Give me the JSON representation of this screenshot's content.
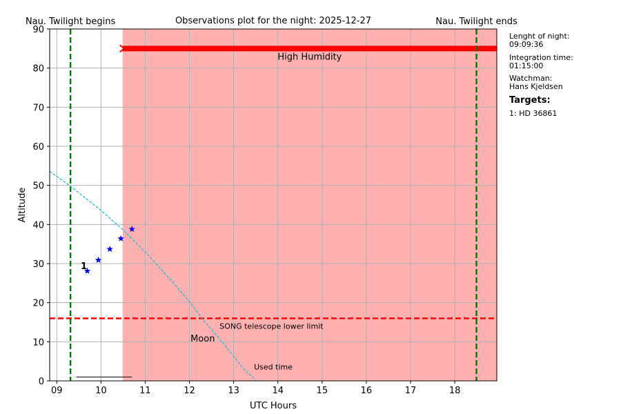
{
  "chart_data": {
    "type": "line",
    "title": "Observations plot for the night: 2025-12-27",
    "xlabel": "UTC Hours",
    "ylabel": "Altitude",
    "xlim": [
      8.84,
      18.95
    ],
    "ylim": [
      0,
      90
    ],
    "xticks": [
      {
        "value": 9,
        "label": "09"
      },
      10,
      11,
      12,
      13,
      14,
      15,
      16,
      17,
      18
    ],
    "yticks": [
      0,
      10,
      20,
      30,
      40,
      50,
      60,
      70,
      80,
      90
    ],
    "grid": true,
    "series": [
      {
        "name": "Moon",
        "color": "#17becf",
        "x": [
          8.84,
          9.31,
          10.0,
          10.5,
          11.0,
          11.5,
          12.0,
          12.3,
          12.8,
          13.2,
          13.5
        ],
        "values": [
          53.6,
          49.8,
          43.6,
          38.6,
          33.0,
          26.8,
          20.3,
          15.7,
          9.2,
          3.4,
          0.2
        ]
      }
    ],
    "observations": {
      "target": "1",
      "color": "#0000ff",
      "x": [
        9.69,
        9.94,
        10.2,
        10.45,
        10.7
      ],
      "values": [
        28.1,
        30.9,
        33.7,
        36.4,
        38.8
      ]
    },
    "used_time": {
      "label": "Used time",
      "x": [
        9.44,
        10.7
      ],
      "values": [
        1,
        1
      ]
    },
    "lower_limit": {
      "label": "SONG telescope lower limit",
      "value": 16,
      "color": "#ff0000"
    },
    "twilight_begin": {
      "label": "Nau. Twilight begins",
      "value": 9.31,
      "color": "#008000"
    },
    "twilight_end": {
      "label": "Nau. Twilight ends",
      "value": 18.49,
      "color": "#008000"
    },
    "high_humidity": {
      "label": "High Humidity",
      "start": 10.49,
      "level": 85,
      "color": "#ff0000",
      "shade": "#ffb0b0"
    }
  },
  "info": {
    "night_length_label": "Lenght of night:",
    "night_length": "09:09:36",
    "integration_label": "Integration time:",
    "integration": "01:15:00",
    "watchman_label": "Watchman:",
    "watchman": "Hans Kjeldsen",
    "targets_label": "Targets:",
    "targets": [
      "1: HD 36861"
    ]
  }
}
